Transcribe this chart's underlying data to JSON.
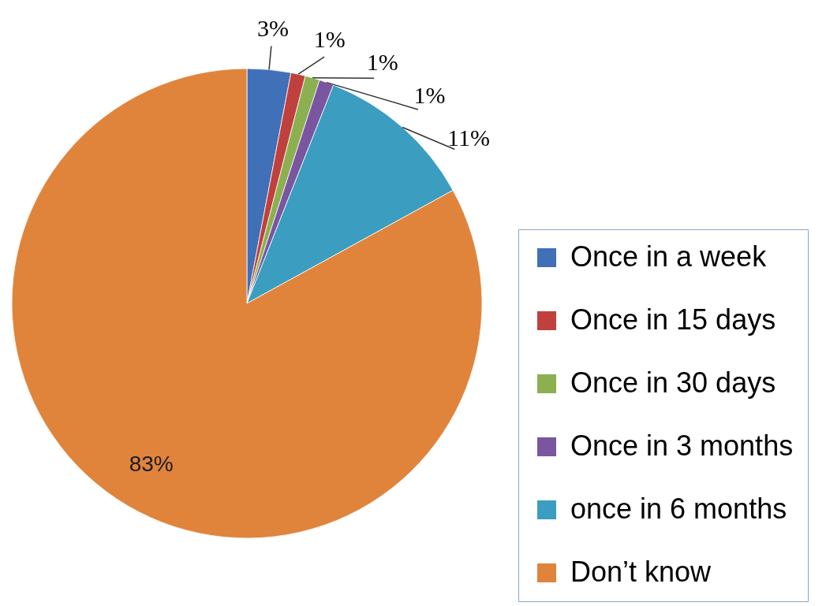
{
  "chart_data": {
    "type": "pie",
    "categories": [
      "Once in a week",
      "Once in 15 days",
      "Once in 30 days",
      "Once in 3 months",
      "once in 6 months",
      "Don’t know"
    ],
    "values": [
      3,
      1,
      1,
      1,
      11,
      83
    ],
    "colors": [
      "#4070b8",
      "#c0403d",
      "#8cb050",
      "#7a55a0",
      "#3b9dbf",
      "#e0843c"
    ],
    "value_labels": [
      "3%",
      "1%",
      "1%",
      "1%",
      "11%",
      "83%"
    ],
    "legend": "bottom right"
  }
}
